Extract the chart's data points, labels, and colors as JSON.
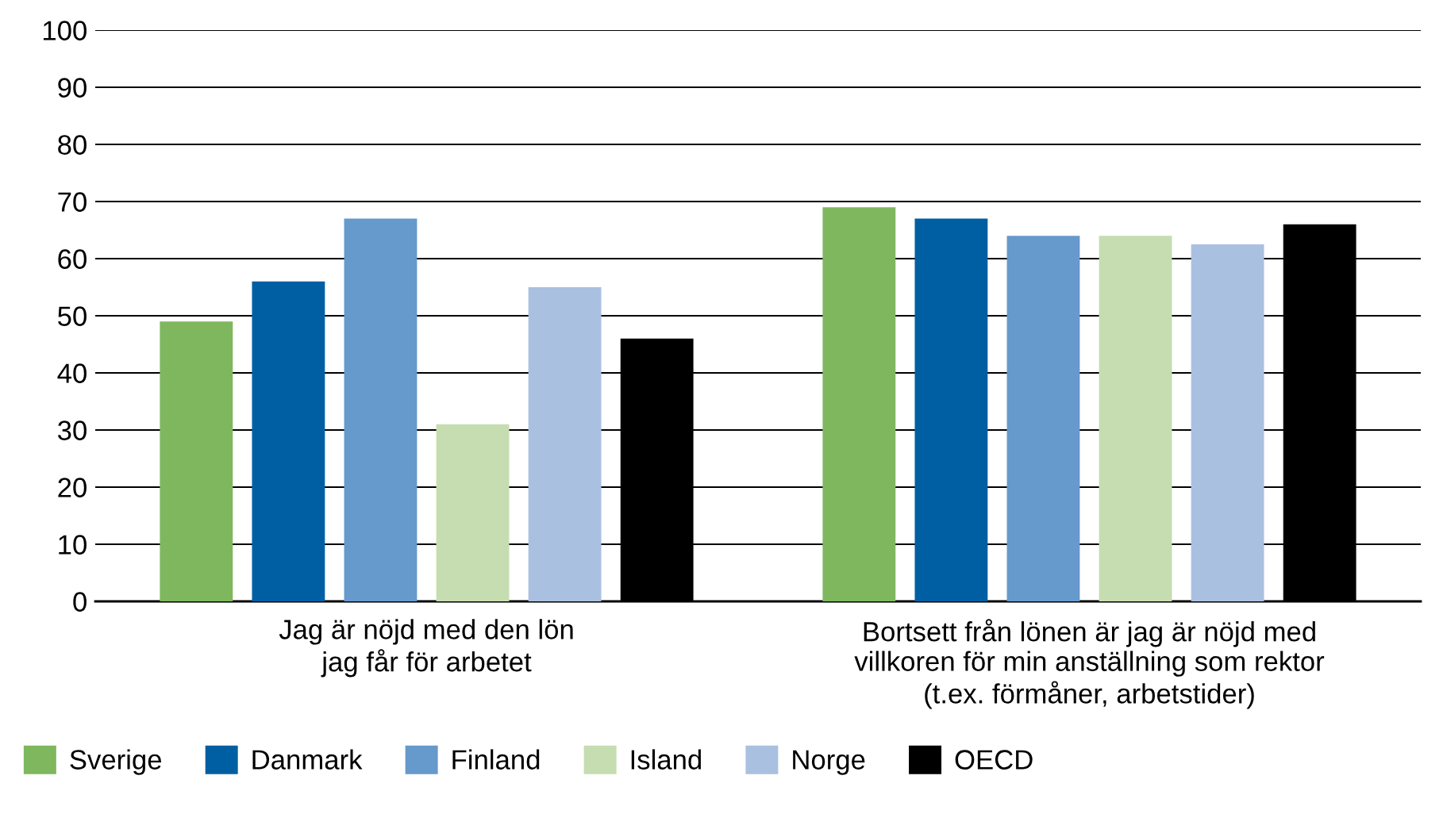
{
  "chart_data": {
    "type": "bar",
    "categories": [
      "Jag är nöjd med den lön\njag får för arbetet",
      "Bortsett från lönen är jag är nöjd med\nvillkoren för min anställning som rektor\n(t.ex. förmåner, arbetstider)"
    ],
    "series": [
      {
        "name": "Sverige",
        "color": "#7fb75e",
        "values": [
          49,
          69
        ]
      },
      {
        "name": "Danmark",
        "color": "#005fa3",
        "values": [
          56,
          67
        ]
      },
      {
        "name": "Finland",
        "color": "#6699cc",
        "values": [
          67,
          64
        ]
      },
      {
        "name": "Island",
        "color": "#c5ddb0",
        "values": [
          31,
          64
        ]
      },
      {
        "name": "Norge",
        "color": "#a9c0e0",
        "values": [
          55,
          62.5
        ]
      },
      {
        "name": "OECD",
        "color": "#000000",
        "values": [
          46,
          66
        ]
      }
    ],
    "ylim": [
      0,
      100
    ],
    "yticks": [
      0,
      10,
      20,
      30,
      40,
      50,
      60,
      70,
      80,
      90,
      100
    ],
    "grid": "y",
    "legend": "bottom"
  }
}
